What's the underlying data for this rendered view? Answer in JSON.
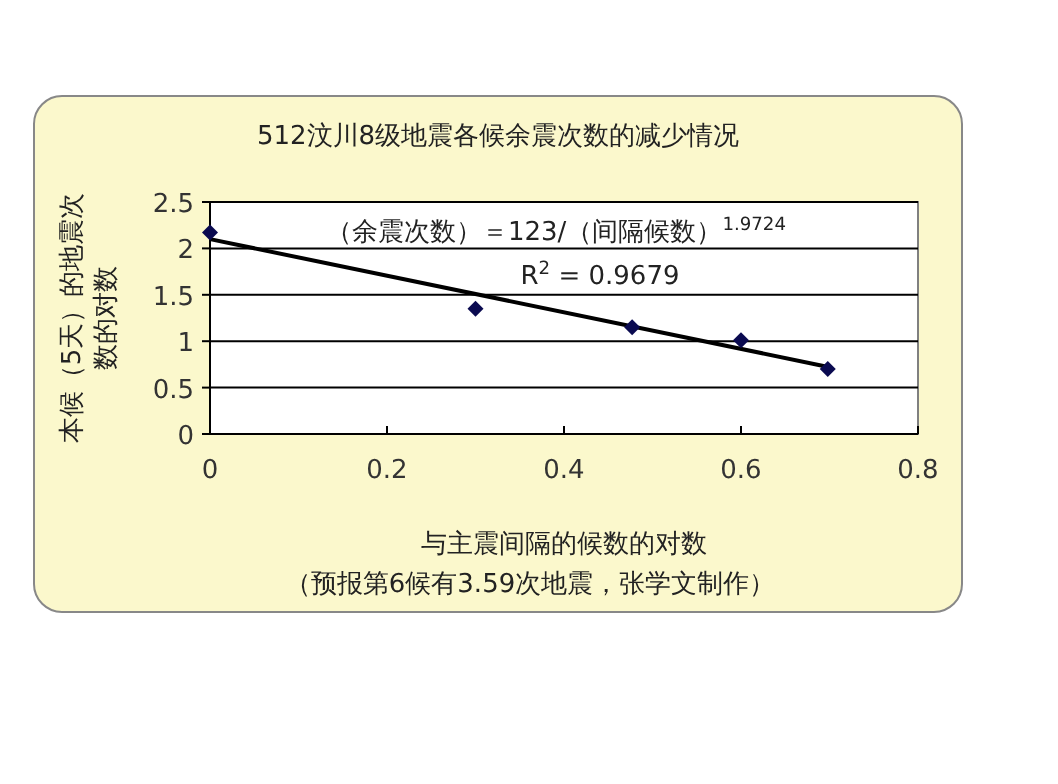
{
  "chart_data": {
    "type": "scatter",
    "title": "512汶川8级地震各候余震次数的减少情况",
    "xlabel": "与主震间隔的候数的对数",
    "ylabel": "本候（5天）的地震次数的对数",
    "annotations": [
      "（余震次数）＝123/（间隔候数）$^{1.9724}$",
      "R$^{2}$ = 0.9679",
      "（预报第6候有3.59次地震，张学文制作）"
    ],
    "series": [
      {
        "color": "#0a0a50",
        "marker": "diamond",
        "x": [
          0,
          0.3,
          0.477,
          0.6,
          0.698
        ],
        "values": [
          2.17,
          1.35,
          1.15,
          1.01,
          0.7
        ]
      },
      {
        "type": "line",
        "color": "#000000",
        "marker": "none",
        "x": [
          0,
          0.7
        ],
        "values": [
          2.1,
          0.72
        ]
      }
    ],
    "xlim": [
      0,
      0.8
    ],
    "xticks": [
      0,
      0.2,
      0.4,
      0.6,
      0.8
    ],
    "ylim": [
      0,
      2.5
    ],
    "yticks": [
      0,
      0.5,
      1,
      1.5,
      2,
      2.5
    ],
    "grid": "y"
  }
}
